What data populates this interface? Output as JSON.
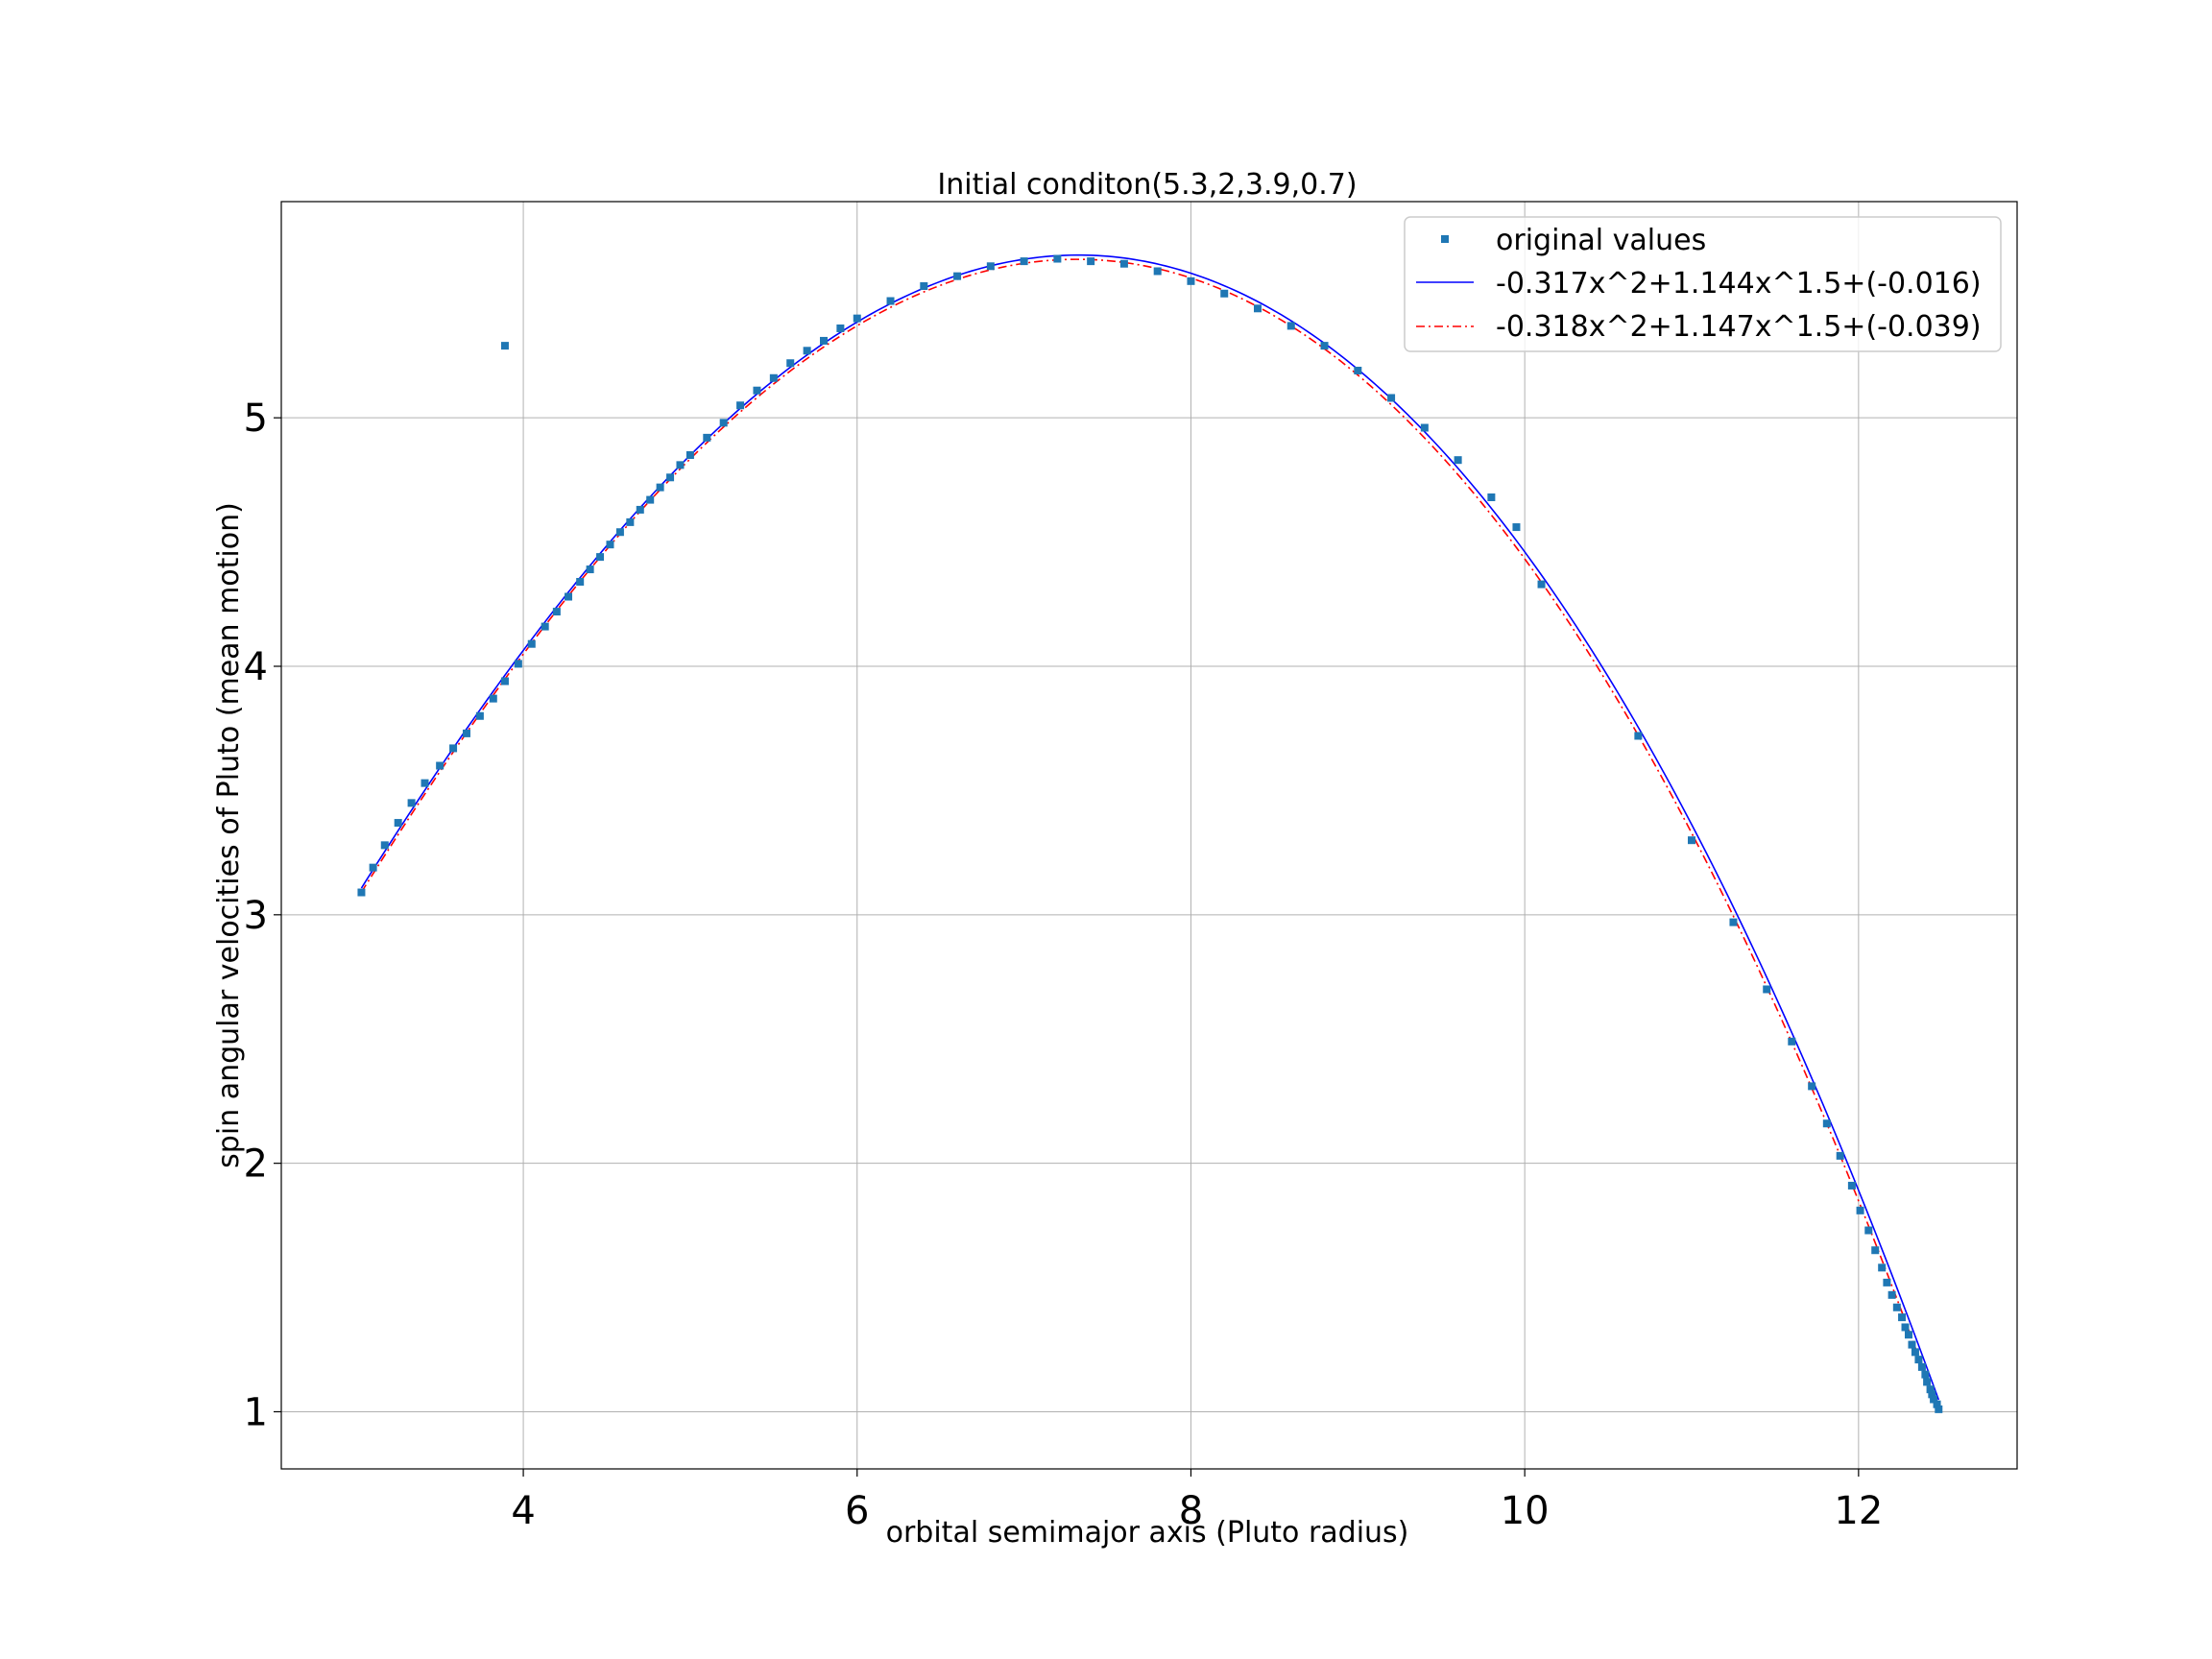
{
  "chart_data": {
    "type": "scatter",
    "title": "Initial conditon(5.3,2,3.9,0.7)",
    "xlabel": "orbital semimajor axis (Pluto radius)",
    "ylabel": "spin angular velocities of Pluto (mean motion)",
    "xlim": [
      2.55,
      12.95
    ],
    "ylim": [
      0.77,
      5.87
    ],
    "xticks": [
      4,
      6,
      8,
      10,
      12
    ],
    "yticks": [
      1,
      2,
      3,
      4,
      5
    ],
    "grid": true,
    "legend_position": "top-right",
    "legend": [
      {
        "label": "original values",
        "kind": "marker"
      },
      {
        "label": "-0.317x^2+1.144x^1.5+(-0.016)",
        "kind": "solid-line"
      },
      {
        "label": "-0.318x^2+1.147x^1.5+(-0.039)",
        "kind": "dashdot-line"
      }
    ],
    "colors": {
      "points": "#1f77b4",
      "fit1": "#0000ff",
      "fit2": "#ff0000",
      "grid": "#b0b0b0"
    },
    "series": [
      {
        "name": "original values",
        "kind": "scatter",
        "points": [
          [
            3.03,
            3.09
          ],
          [
            3.1,
            3.19
          ],
          [
            3.17,
            3.28
          ],
          [
            3.25,
            3.37
          ],
          [
            3.33,
            3.45
          ],
          [
            3.41,
            3.53
          ],
          [
            3.5,
            3.6
          ],
          [
            3.58,
            3.67
          ],
          [
            3.66,
            3.73
          ],
          [
            3.74,
            3.8
          ],
          [
            3.82,
            3.87
          ],
          [
            3.89,
            3.94
          ],
          [
            3.97,
            4.01
          ],
          [
            4.05,
            4.09
          ],
          [
            4.13,
            4.16
          ],
          [
            4.2,
            4.22
          ],
          [
            4.27,
            4.28
          ],
          [
            4.34,
            4.34
          ],
          [
            4.4,
            4.39
          ],
          [
            4.46,
            4.44
          ],
          [
            4.52,
            4.49
          ],
          [
            4.58,
            4.54
          ],
          [
            4.64,
            4.58
          ],
          [
            4.7,
            4.63
          ],
          [
            4.76,
            4.67
          ],
          [
            4.82,
            4.72
          ],
          [
            4.88,
            4.76
          ],
          [
            4.94,
            4.81
          ],
          [
            5.0,
            4.85
          ],
          [
            5.1,
            4.92
          ],
          [
            5.2,
            4.98
          ],
          [
            5.3,
            5.05
          ],
          [
            5.4,
            5.11
          ],
          [
            5.5,
            5.16
          ],
          [
            5.6,
            5.22
          ],
          [
            5.7,
            5.27
          ],
          [
            5.8,
            5.31
          ],
          [
            5.9,
            5.36
          ],
          [
            6.0,
            5.4
          ],
          [
            6.2,
            5.47
          ],
          [
            6.4,
            5.53
          ],
          [
            6.6,
            5.57
          ],
          [
            6.8,
            5.61
          ],
          [
            7.0,
            5.63
          ],
          [
            7.2,
            5.64
          ],
          [
            7.4,
            5.63
          ],
          [
            7.6,
            5.62
          ],
          [
            7.8,
            5.59
          ],
          [
            8.0,
            5.55
          ],
          [
            8.2,
            5.5
          ],
          [
            8.4,
            5.44
          ],
          [
            8.6,
            5.37
          ],
          [
            8.8,
            5.29
          ],
          [
            9.0,
            5.19
          ],
          [
            9.2,
            5.08
          ],
          [
            9.4,
            4.96
          ],
          [
            9.6,
            4.83
          ],
          [
            9.8,
            4.68
          ],
          [
            9.95,
            4.56
          ],
          [
            10.1,
            4.33
          ],
          [
            10.68,
            3.72
          ],
          [
            11.0,
            3.3
          ],
          [
            11.25,
            2.97
          ],
          [
            11.45,
            2.7
          ],
          [
            11.6,
            2.49
          ],
          [
            11.72,
            2.31
          ],
          [
            11.81,
            2.16
          ],
          [
            11.89,
            2.03
          ],
          [
            11.96,
            1.91
          ],
          [
            12.01,
            1.81
          ],
          [
            12.06,
            1.73
          ],
          [
            12.1,
            1.65
          ],
          [
            12.14,
            1.58
          ],
          [
            12.17,
            1.52
          ],
          [
            12.2,
            1.47
          ],
          [
            12.23,
            1.42
          ],
          [
            12.26,
            1.38
          ],
          [
            12.28,
            1.34
          ],
          [
            12.3,
            1.31
          ],
          [
            12.32,
            1.27
          ],
          [
            12.34,
            1.24
          ],
          [
            12.36,
            1.21
          ],
          [
            12.38,
            1.18
          ],
          [
            12.4,
            1.15
          ],
          [
            12.41,
            1.12
          ],
          [
            12.43,
            1.09
          ],
          [
            12.44,
            1.07
          ],
          [
            12.45,
            1.05
          ],
          [
            12.47,
            1.03
          ],
          [
            12.48,
            1.01
          ],
          [
            3.89,
            5.29
          ]
        ]
      },
      {
        "name": "-0.317x^2+1.144x^1.5+(-0.016)",
        "kind": "line",
        "style": "solid",
        "x_range": [
          3.03,
          12.48
        ]
      },
      {
        "name": "-0.318x^2+1.147x^1.5+(-0.039)",
        "kind": "line",
        "style": "dashdot",
        "x_range": [
          3.03,
          12.48
        ]
      }
    ]
  }
}
